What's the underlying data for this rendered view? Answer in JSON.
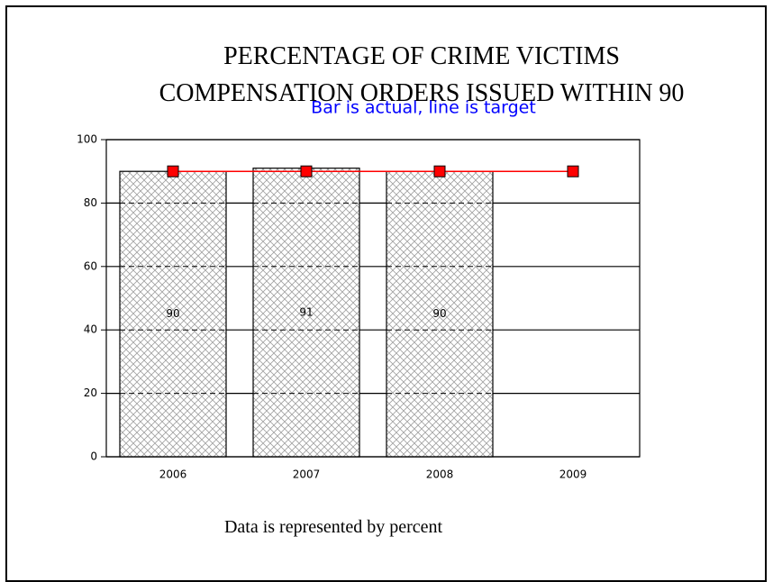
{
  "chart_data": {
    "type": "bar",
    "title": "PERCENTAGE OF CRIME VICTIMS COMPENSATION ORDERS ISSUED WITHIN 90",
    "subtitle": "Bar is actual, line is target",
    "footnote": "Data is represented by percent",
    "categories": [
      "2006",
      "2007",
      "2008",
      "2009"
    ],
    "bar_values": [
      90,
      91,
      90,
      null
    ],
    "target_values": [
      90,
      90,
      90,
      90
    ],
    "bar_color": "#ffffff",
    "line_color": "#ff0000",
    "ylim": [
      0,
      100
    ],
    "yticks": [
      0,
      20,
      40,
      60,
      80,
      100
    ],
    "grid": true
  }
}
